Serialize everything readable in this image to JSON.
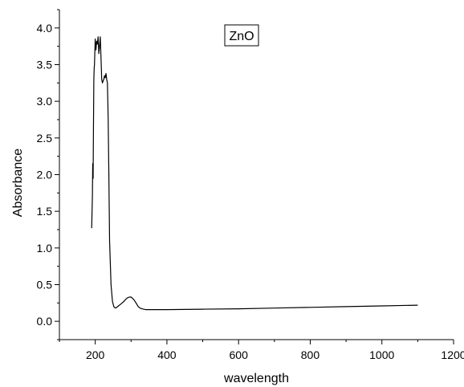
{
  "chart_data": {
    "type": "line",
    "title": "",
    "xlabel": "wavelength",
    "ylabel": "Absorbance",
    "xlim": [
      100,
      1200
    ],
    "ylim": [
      -0.25,
      4.25
    ],
    "x_ticks": [
      200,
      400,
      600,
      800,
      1000,
      1200
    ],
    "x_tick_labels": [
      "200",
      "400",
      "600",
      "800",
      "1000",
      "1200"
    ],
    "y_ticks": [
      0.0,
      0.5,
      1.0,
      1.5,
      2.0,
      2.5,
      3.0,
      3.5,
      4.0
    ],
    "y_tick_labels": [
      "0.0",
      "0.5",
      "1.0",
      "1.5",
      "2.0",
      "2.5",
      "3.0",
      "3.5",
      "4.0"
    ],
    "grid": false,
    "legend": {
      "text": "ZnO",
      "placement": "top-center"
    },
    "series": [
      {
        "name": "ZnO",
        "x": [
          190,
          192,
          193,
          194,
          195,
          196,
          197,
          198,
          200,
          202,
          204,
          206,
          208,
          210,
          212,
          214,
          216,
          218,
          220,
          222,
          224,
          226,
          228,
          230,
          232,
          234,
          236,
          238,
          240,
          244,
          248,
          252,
          256,
          260,
          265,
          270,
          275,
          280,
          285,
          290,
          295,
          300,
          305,
          310,
          315,
          320,
          325,
          330,
          335,
          340,
          350,
          400,
          500,
          600,
          700,
          800,
          900,
          1000,
          1100
        ],
        "y": [
          1.27,
          1.7,
          2.15,
          1.95,
          2.6,
          3.3,
          3.45,
          3.5,
          3.85,
          3.7,
          3.82,
          3.78,
          3.88,
          3.65,
          3.75,
          3.88,
          3.6,
          3.3,
          3.25,
          3.28,
          3.3,
          3.35,
          3.32,
          3.38,
          3.3,
          3.25,
          2.8,
          2.0,
          1.1,
          0.5,
          0.27,
          0.2,
          0.18,
          0.19,
          0.21,
          0.23,
          0.25,
          0.27,
          0.3,
          0.32,
          0.33,
          0.33,
          0.31,
          0.28,
          0.24,
          0.2,
          0.18,
          0.17,
          0.165,
          0.16,
          0.16,
          0.16,
          0.165,
          0.17,
          0.18,
          0.19,
          0.2,
          0.21,
          0.22
        ]
      }
    ]
  }
}
